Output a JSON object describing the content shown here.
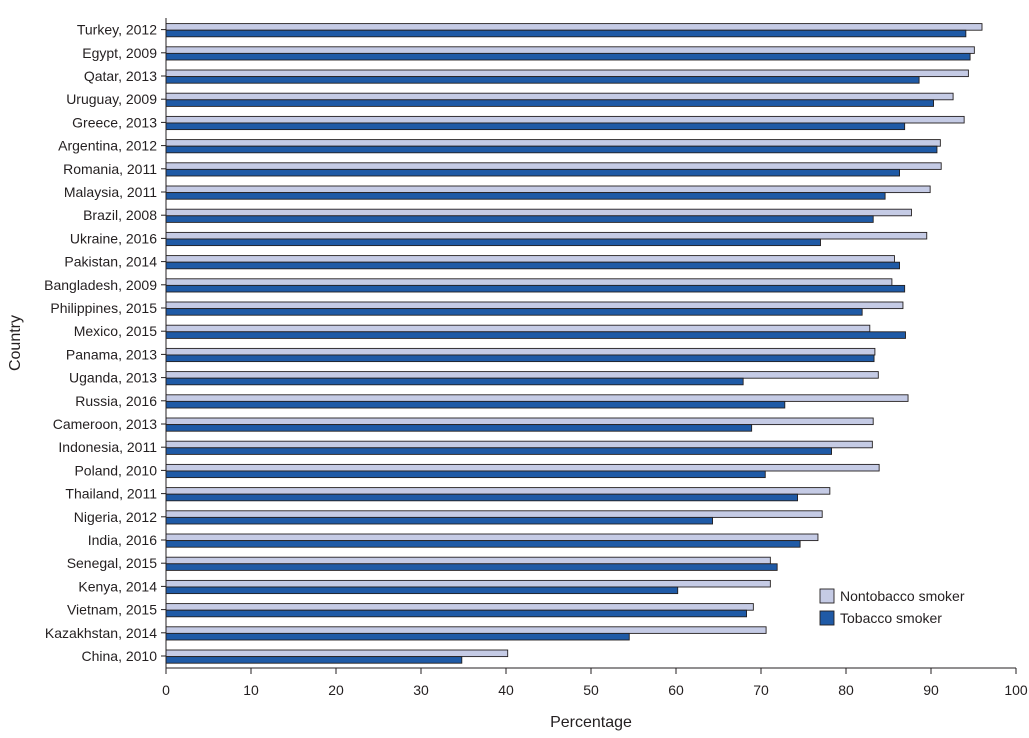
{
  "chart_data": {
    "type": "bar",
    "orientation": "horizontal",
    "title": "",
    "xlabel": "Percentage",
    "ylabel": "Country",
    "xlim": [
      0,
      100
    ],
    "xticks": [
      0,
      10,
      20,
      30,
      40,
      50,
      60,
      70,
      80,
      90,
      100
    ],
    "grid": false,
    "legend_position": "bottom-right",
    "categories": [
      "Turkey, 2012",
      "Egypt, 2009",
      "Qatar, 2013",
      "Uruguay, 2009",
      "Greece, 2013",
      "Argentina, 2012",
      "Romania, 2011",
      "Malaysia, 2011",
      "Brazil, 2008",
      "Ukraine, 2016",
      "Pakistan, 2014",
      "Bangladesh, 2009",
      "Philippines, 2015",
      "Mexico, 2015",
      "Panama, 2013",
      "Uganda, 2013",
      "Russia, 2016",
      "Cameroon, 2013",
      "Indonesia, 2011",
      "Poland, 2010",
      "Thailand, 2011",
      "Nigeria, 2012",
      "India, 2016",
      "Senegal, 2015",
      "Kenya, 2014",
      "Vietnam, 2015",
      "Kazakhstan, 2014",
      "China, 2010"
    ],
    "series": [
      {
        "name": "Nontobacco smoker",
        "color": "#c5cbe5",
        "values": [
          96.0,
          95.1,
          94.4,
          92.6,
          93.9,
          91.1,
          91.2,
          89.9,
          87.7,
          89.5,
          85.7,
          85.4,
          86.7,
          82.8,
          83.4,
          83.8,
          87.3,
          83.2,
          83.1,
          83.9,
          78.1,
          77.2,
          76.7,
          71.1,
          71.1,
          69.1,
          70.6,
          40.2
        ]
      },
      {
        "name": "Tobacco smoker",
        "color": "#1f5aa6",
        "values": [
          94.1,
          94.6,
          88.6,
          90.3,
          86.9,
          90.7,
          86.3,
          84.6,
          83.2,
          77.0,
          86.3,
          86.9,
          81.9,
          87.0,
          83.3,
          67.9,
          72.8,
          68.9,
          78.3,
          70.5,
          74.3,
          64.3,
          74.6,
          71.9,
          60.2,
          68.3,
          54.5,
          34.8
        ]
      }
    ]
  }
}
